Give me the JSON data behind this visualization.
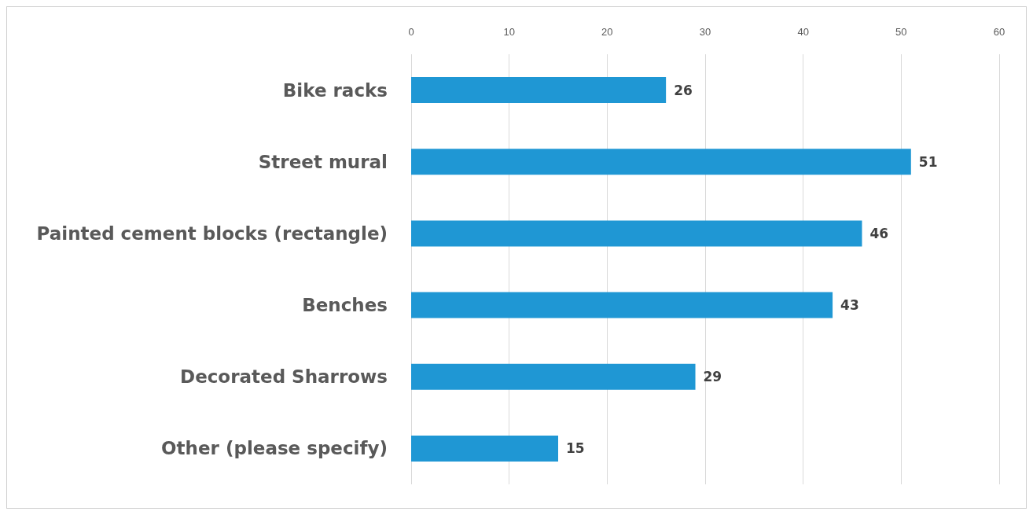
{
  "chart_data": {
    "type": "bar",
    "orientation": "horizontal",
    "categories": [
      "Bike racks",
      "Street mural",
      "Painted cement blocks (rectangle)",
      "Benches",
      "Decorated Sharrows",
      "Other (please specify)"
    ],
    "values": [
      26,
      51,
      46,
      43,
      29,
      15
    ],
    "color": "#1f97d4",
    "xlim": [
      0,
      60
    ],
    "xticks": [
      0,
      10,
      20,
      30,
      40,
      50,
      60
    ],
    "grid": "x",
    "data_labels": true
  }
}
